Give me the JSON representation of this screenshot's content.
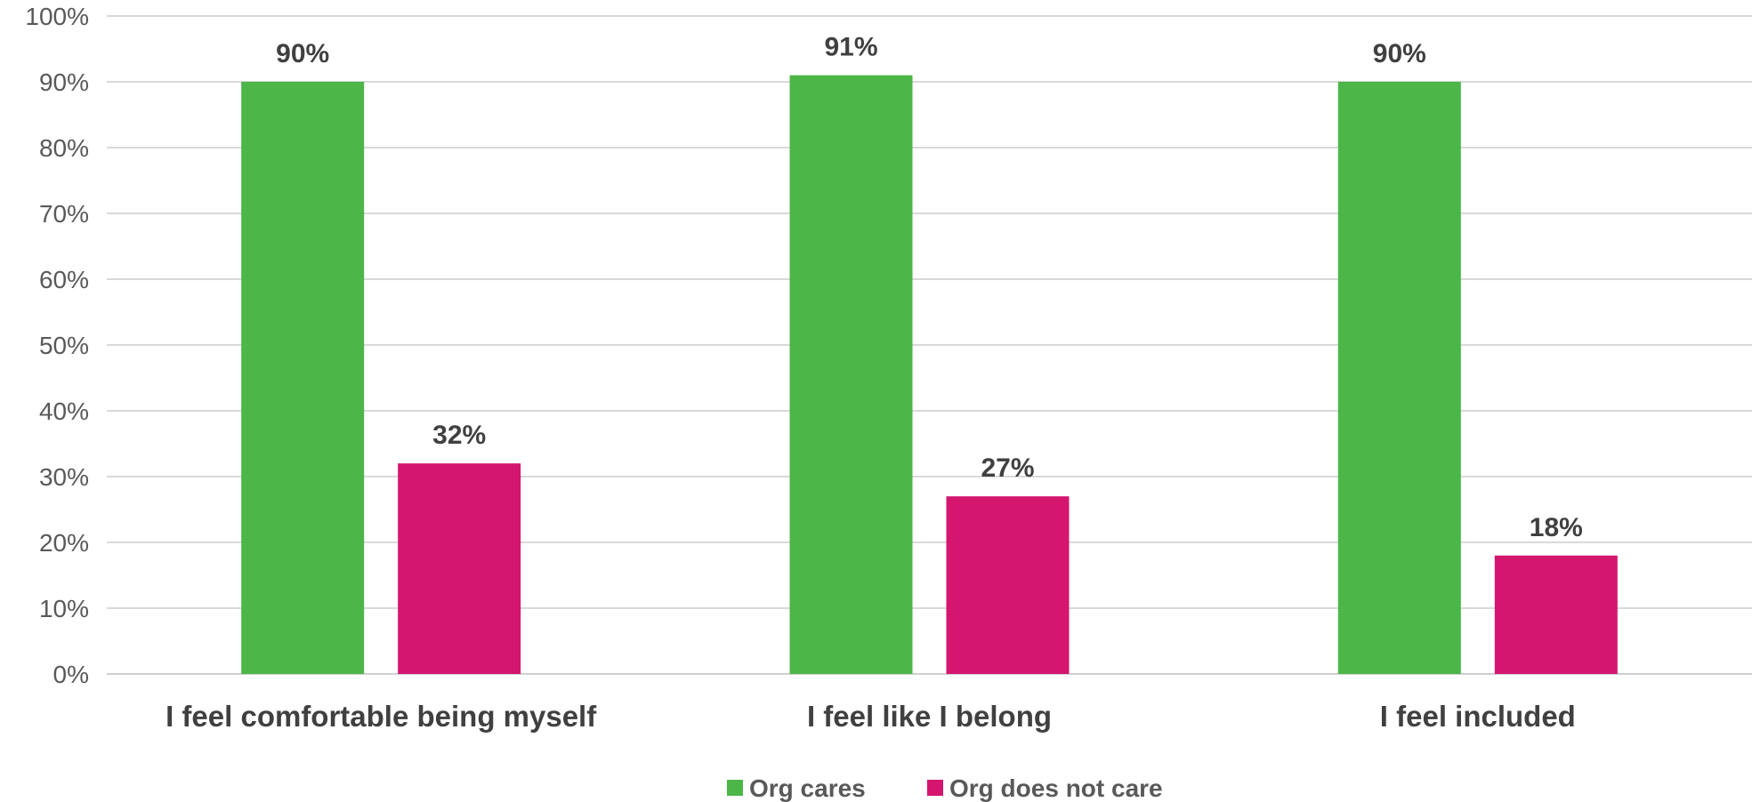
{
  "chart_data": {
    "type": "bar",
    "categories": [
      "I feel comfortable being myself",
      "I feel like I belong",
      "I feel included"
    ],
    "series": [
      {
        "name": "Org cares",
        "values": [
          90,
          91,
          90
        ],
        "labels": [
          "90%",
          "91%",
          "90%"
        ],
        "color": "#4cb649"
      },
      {
        "name": "Org does not care",
        "values": [
          32,
          27,
          18
        ],
        "labels": [
          "32%",
          "27%",
          "18%"
        ],
        "color": "#d4166f"
      }
    ],
    "ylim": [
      0,
      100
    ],
    "yticks": [
      "0%",
      "10%",
      "20%",
      "30%",
      "40%",
      "50%",
      "60%",
      "70%",
      "80%",
      "90%",
      "100%"
    ],
    "grid": true,
    "legend_position": "bottom"
  }
}
